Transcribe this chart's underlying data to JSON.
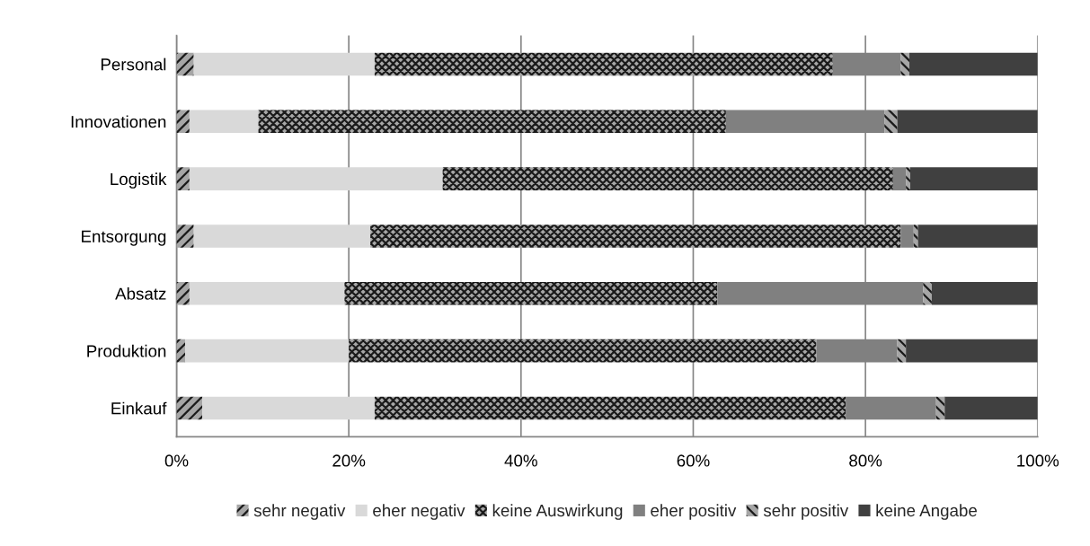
{
  "chart_data": {
    "type": "bar",
    "orientation": "horizontal",
    "stacked": true,
    "categories": [
      "Personal",
      "Innovationen",
      "Logistik",
      "Entsorgung",
      "Absatz",
      "Produktion",
      "Einkauf"
    ],
    "series": [
      {
        "name": "sehr negativ",
        "color": "#a6a6a6",
        "values": [
          2.0,
          1.5,
          1.5,
          2.0,
          1.5,
          1.0,
          3.0
        ]
      },
      {
        "name": "eher negativ",
        "color": "#d9d9d9",
        "values": [
          21.0,
          8.0,
          29.4,
          20.5,
          18.0,
          19.0,
          20.0
        ]
      },
      {
        "name": "keine Auswirkung",
        "color": "#a6a6a6",
        "values": [
          53.2,
          54.3,
          52.3,
          61.6,
          43.3,
          54.3,
          54.7
        ]
      },
      {
        "name": "eher positiv",
        "color": "#808080",
        "values": [
          7.9,
          18.4,
          1.5,
          1.5,
          23.9,
          9.4,
          10.5
        ]
      },
      {
        "name": "sehr positiv",
        "color": "#a6a6a6",
        "values": [
          1.0,
          1.5,
          0.5,
          0.5,
          1.0,
          1.0,
          1.0
        ]
      },
      {
        "name": "keine Angabe",
        "color": "#404040",
        "values": [
          14.9,
          16.3,
          14.8,
          13.9,
          12.3,
          15.3,
          10.8
        ]
      }
    ],
    "xlim": [
      0,
      100
    ],
    "xticks": [
      {
        "value": 0,
        "label": "0%"
      },
      {
        "value": 20,
        "label": "20%"
      },
      {
        "value": 40,
        "label": "40%"
      },
      {
        "value": 60,
        "label": "60%"
      },
      {
        "value": 80,
        "label": "80%"
      },
      {
        "value": 100,
        "label": "100%"
      }
    ],
    "grid": "x",
    "legend": "bottom"
  }
}
